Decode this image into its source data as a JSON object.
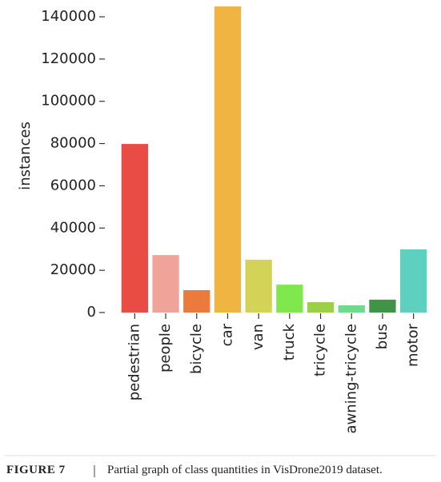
{
  "chart_data": {
    "type": "bar",
    "ylabel": "instances",
    "categories": [
      "pedestrian",
      "people",
      "bicycle",
      "car",
      "van",
      "truck",
      "tricycle",
      "awning-tricycle",
      "bus",
      "motor"
    ],
    "values": [
      79800,
      27200,
      10600,
      144900,
      25000,
      13200,
      4900,
      3400,
      6100,
      29900
    ],
    "colors": [
      "#e84c44",
      "#f0a499",
      "#ec7a3c",
      "#f0b443",
      "#d3d358",
      "#7fe84c",
      "#9bcf4a",
      "#6ddc8c",
      "#3f9447",
      "#5ed0bf"
    ],
    "ylim": [
      0,
      145000
    ],
    "yticks": [
      0,
      20000,
      40000,
      60000,
      80000,
      100000,
      120000,
      140000
    ],
    "grid": false
  },
  "caption": {
    "label": "FIGURE 7",
    "text": "Partial graph of class quantities in VisDrone2019 dataset."
  }
}
